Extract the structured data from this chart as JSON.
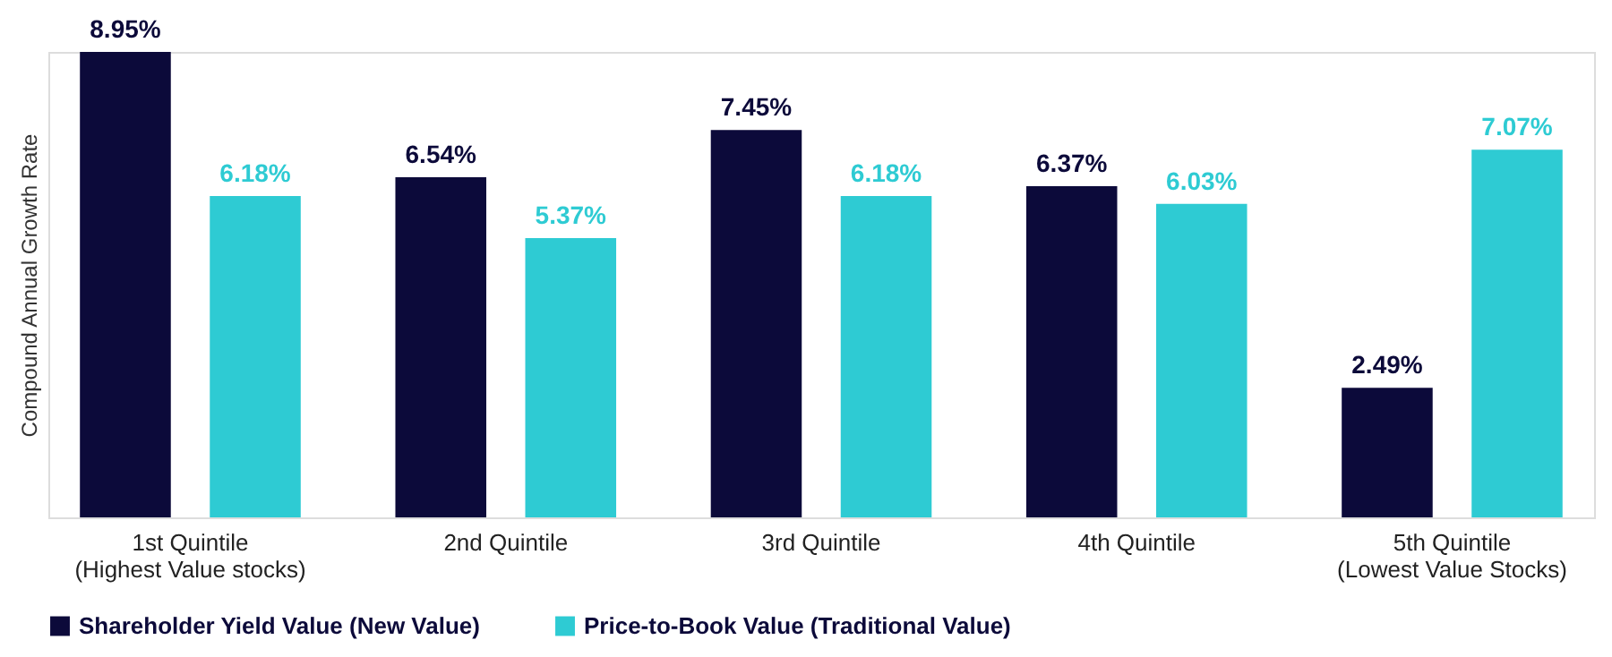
{
  "chart_data": {
    "type": "bar",
    "ylabel": "Compound Annual Growth Rate",
    "categories": [
      "1st Quintile\n(Highest Value stocks)",
      "2nd Quintile",
      "3rd Quintile",
      "4th Quintile",
      "5th Quintile\n(Lowest Value Stocks)"
    ],
    "series": [
      {
        "name": "Shareholder Yield Value (New Value)",
        "color": "#0c0a3a",
        "values": [
          8.95,
          6.54,
          7.45,
          6.37,
          2.49
        ],
        "value_labels": [
          "8.95%",
          "6.54%",
          "7.45%",
          "6.37%",
          "2.49%"
        ]
      },
      {
        "name": "Price-to-Book Value (Traditional Value)",
        "color": "#2ecbd3",
        "values": [
          6.18,
          5.37,
          6.18,
          6.03,
          7.07
        ],
        "value_labels": [
          "6.18%",
          "5.37%",
          "6.18%",
          "6.03%",
          "7.07%"
        ]
      }
    ],
    "legend": "bottom",
    "grid": false
  }
}
